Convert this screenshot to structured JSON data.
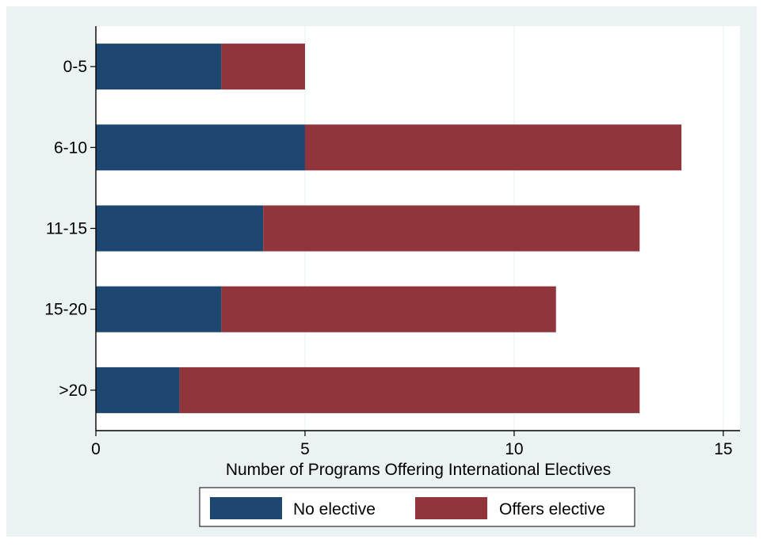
{
  "chart_data": {
    "type": "bar",
    "orientation": "horizontal",
    "stacked": true,
    "categories": [
      "0-5",
      "6-10",
      "11-15",
      "15-20",
      ">20"
    ],
    "series": [
      {
        "name": "No elective",
        "values": [
          3,
          5,
          4,
          3,
          2
        ],
        "color": "#1d4670"
      },
      {
        "name": "Offers elective",
        "values": [
          2,
          9,
          9,
          8,
          11
        ],
        "color": "#90353b"
      }
    ],
    "xlabel": "Number of Programs Offering International Electives",
    "ylabel": "",
    "xlim": [
      0,
      15.4
    ],
    "xticks": [
      0,
      5,
      10,
      15
    ],
    "grid": true,
    "legend_position": "bottom",
    "colors": {
      "outer_background": "#eaf2f3",
      "plot_background": "#ffffff",
      "grid": "#eaf2f3"
    }
  }
}
